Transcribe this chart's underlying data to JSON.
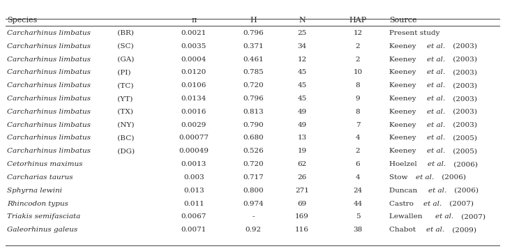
{
  "headers": [
    "Species",
    "π",
    "H",
    "N",
    "HAP",
    "Source"
  ],
  "rows": [
    [
      "Carcharhinus limbatus",
      " (BR)",
      "0.0021",
      "0.796",
      "25",
      "12",
      "Present study",
      "",
      ""
    ],
    [
      "Carcharhinus limbatus",
      " (SC)",
      "0.0035",
      "0.371",
      "34",
      "2",
      "Keeney ",
      "et al.",
      " (2003)"
    ],
    [
      "Carcharhinus limbatus",
      " (GA)",
      "0.0004",
      "0.461",
      "12",
      "2",
      "Keeney ",
      "et al.",
      " (2003)"
    ],
    [
      "Carcharhinus limbatus",
      " (PI)",
      "0.0120",
      "0.785",
      "45",
      "10",
      "Keeney ",
      "et al.",
      " (2003)"
    ],
    [
      "Carcharhinus limbatus",
      " (TC)",
      "0.0106",
      "0.720",
      "45",
      "8",
      "Keeney ",
      "et al.",
      " (2003)"
    ],
    [
      "Carcharhinus limbatus",
      " (YT)",
      "0.0134",
      "0.796",
      "45",
      "9",
      "Keeney ",
      "et al.",
      " (2003)"
    ],
    [
      "Carcharhinus limbatus",
      " (TX)",
      "0.0016",
      "0.813",
      "49",
      "8",
      "Keeney ",
      "et al.",
      " (2003)"
    ],
    [
      "Carcharhinus limbatus",
      " (NY)",
      "0.0029",
      "0.790",
      "49",
      "7",
      "Keeney ",
      "et al.",
      " (2003)"
    ],
    [
      "Carcharhinus limbatus",
      " (BC)",
      "0.00077",
      "0.680",
      "13",
      "4",
      "Keeney ",
      "et al.",
      " (2005)"
    ],
    [
      "Carcharhinus limbatus",
      " (DG)",
      "0.00049",
      "0.526",
      "19",
      "2",
      "Keeney ",
      "et al.",
      " (2005)"
    ],
    [
      "Cetorhinus maximus",
      "",
      "0.0013",
      "0.720",
      "62",
      "6",
      "Hoelzel ",
      "et al.",
      " (2006)"
    ],
    [
      "Carcharias taurus",
      "",
      "0.003",
      "0.717",
      "26",
      "4",
      "Stow ",
      "et al.",
      " (2006)"
    ],
    [
      "Sphyrna lewini",
      "",
      "0.013",
      "0.800",
      "271",
      "24",
      "Duncan ",
      "et al.",
      " (2006)"
    ],
    [
      "Rhincodon typus",
      "",
      "0.011",
      "0.974",
      "69",
      "44",
      "Castro ",
      "et al.",
      " (2007)"
    ],
    [
      "Triakis semifasciata",
      "",
      "0.0067",
      "-",
      "169",
      "5",
      "Lewallen ",
      "et al.",
      " (2007)"
    ],
    [
      "Galeorhinus galeus",
      "",
      "0.0071",
      "0.92",
      "116",
      "38",
      "Chabot ",
      "et al.",
      " (2009)"
    ]
  ],
  "font_size": 7.5,
  "bg_color": "#ffffff",
  "text_color": "#2a2a2a",
  "line_color": "#555555"
}
